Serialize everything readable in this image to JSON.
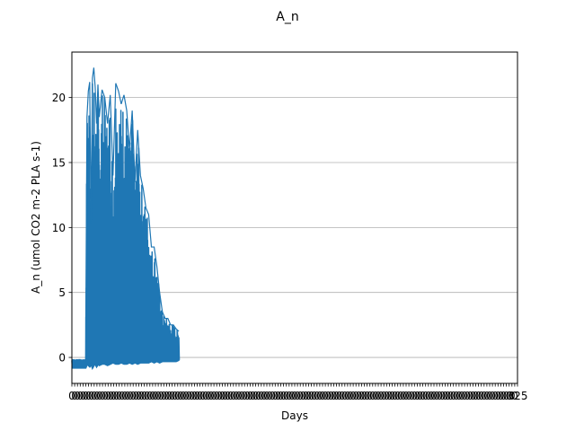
{
  "chart_data": {
    "type": "line",
    "title": "A_n",
    "xlabel": "Days",
    "ylabel": "A_n (umol CO2 m-2 PLA s-1)",
    "xlim": [
      0,
      325
    ],
    "ylim": [
      -2,
      23.5
    ],
    "yticks": [
      0,
      5,
      10,
      15,
      20
    ],
    "ytick_labels": [
      "0",
      "5",
      "10",
      "15",
      "20"
    ],
    "xticks_note": "dense overlapping day labels from 0 to 325",
    "xtick_start_label": "0",
    "xtick_end_label": "325",
    "grid": "horizontal",
    "color": "#1f77b4",
    "series": [
      {
        "x": [
          0,
          10,
          11,
          12,
          13,
          14,
          15,
          16,
          17,
          18,
          19,
          20,
          22,
          24,
          26,
          28,
          30,
          32,
          34,
          36,
          38,
          40,
          42,
          44,
          46,
          48,
          50,
          52,
          54,
          56,
          58,
          60,
          62,
          64,
          66,
          68,
          70,
          72,
          74,
          76,
          78
        ],
        "y_max": [
          -0.3,
          -0.3,
          18.5,
          20.5,
          21.2,
          10.3,
          21.5,
          22.3,
          20.8,
          18.0,
          21.0,
          18.5,
          20.6,
          20.0,
          18.0,
          20.2,
          14.0,
          21.1,
          20.5,
          19.5,
          20.2,
          19.0,
          16.0,
          19.0,
          13.5,
          17.5,
          14.0,
          13.0,
          11.5,
          11.0,
          8.5,
          8.5,
          7.0,
          5.0,
          3.5,
          3.0,
          3.0,
          2.5,
          2.5,
          2.2,
          2.0
        ],
        "y_min": [
          -0.8,
          -0.8,
          -0.5,
          -0.6,
          -0.7,
          -0.5,
          -0.8,
          -0.6,
          -0.5,
          -0.7,
          -0.5,
          -0.6,
          -0.5,
          -0.5,
          -0.6,
          -0.5,
          -0.4,
          -0.5,
          -0.5,
          -0.4,
          -0.5,
          -0.5,
          -0.4,
          -0.5,
          -0.4,
          -0.5,
          -0.4,
          -0.4,
          -0.4,
          -0.4,
          -0.3,
          -0.4,
          -0.3,
          -0.4,
          -0.3,
          -0.3,
          -0.3,
          -0.3,
          -0.3,
          -0.3,
          -0.2
        ]
      }
    ]
  }
}
